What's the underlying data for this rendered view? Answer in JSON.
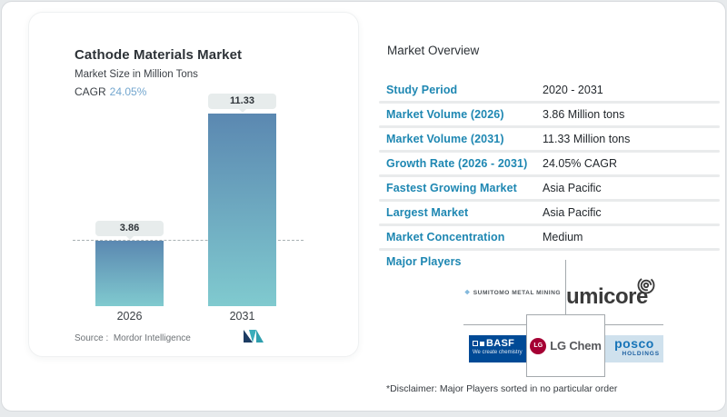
{
  "chart_card": {
    "title": "Cathode Materials Market",
    "subtitle": "Market Size in Million Tons",
    "cagr_label": "CAGR",
    "cagr_value": "24.05%",
    "source_label": "Source :",
    "source_name": "Mordor Intelligence"
  },
  "chart_data": {
    "type": "bar",
    "title": "Cathode Materials Market",
    "ylabel": "Market Size in Million Tons",
    "categories": [
      "2026",
      "2031"
    ],
    "values": [
      3.86,
      11.33
    ],
    "data_labels": [
      "3.86",
      "11.33"
    ],
    "cagr": "24.05%",
    "reference_line": {
      "y": 3.86,
      "style": "dashed"
    },
    "grid": false,
    "legend": "none",
    "bar_gradient_top": "#5b88b1",
    "bar_gradient_bottom": "#80cacf"
  },
  "overview": {
    "heading": "Market Overview",
    "rows": [
      {
        "label": "Study Period",
        "value": "2020 - 2031"
      },
      {
        "label": "Market Volume (2026)",
        "value": "3.86 Million tons"
      },
      {
        "label": "Market Volume (2031)",
        "value": "11.33 Million tons"
      },
      {
        "label": "Growth Rate (2026 - 2031)",
        "value": "24.05% CAGR"
      },
      {
        "label": "Fastest Growing Market",
        "value": "Asia Pacific"
      },
      {
        "label": "Largest Market",
        "value": "Asia Pacific"
      },
      {
        "label": "Market Concentration",
        "value": "Medium"
      },
      {
        "label": "Major Players",
        "value": ""
      }
    ]
  },
  "players": {
    "sumitomo": "SUMITOMO METAL MINING",
    "umicore": "umicore",
    "basf": "BASF",
    "basf_tagline": "We create chemistry",
    "lg_monogram": "LG",
    "lg_chem": "LG Chem",
    "posco": "posco",
    "posco_sub": "HOLDINGS"
  },
  "disclaimer": "*Disclaimer: Major Players sorted in no particular order",
  "colors": {
    "label_blue": "#1e87b2",
    "cagr_blue": "#74a7cf",
    "basf_blue": "#004a96",
    "lg_magenta": "#a50034",
    "posco_blue": "#1774b8",
    "bar_top": "#5b88b1",
    "bar_bottom": "#80cacf"
  }
}
